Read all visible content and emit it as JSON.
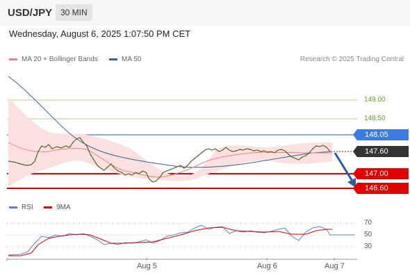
{
  "header": {
    "symbol": "USD/JPY",
    "timeframe": "30 MIN"
  },
  "datetime": "Wednesday, August 6, 2025 1:07:50 PM CET",
  "legend": {
    "ma20": "MA 20 + Bollinger Bands",
    "ma50": "MA 50",
    "credit": "Research © 2025 Trading Central"
  },
  "levels": {
    "l149": "149.00",
    "l1485": "148.50",
    "l14805": "148.05",
    "l1476": "147.60",
    "l147": "147.00",
    "l1466": "146.60"
  },
  "colors": {
    "ma20": "#f08080",
    "ma50": "#3a5f9a",
    "resistance": "#3d7be0",
    "support": "#e00000",
    "green": "#5aa02c",
    "price": "#333333"
  },
  "rsi": {
    "label": "RSI",
    "ma_label": "9MA",
    "levels": {
      "l70": "70",
      "l50": "50",
      "l30": "30"
    }
  },
  "xaxis": {
    "aug5": "Aug 5",
    "aug6": "Aug 6",
    "aug7": "Aug 7"
  }
}
